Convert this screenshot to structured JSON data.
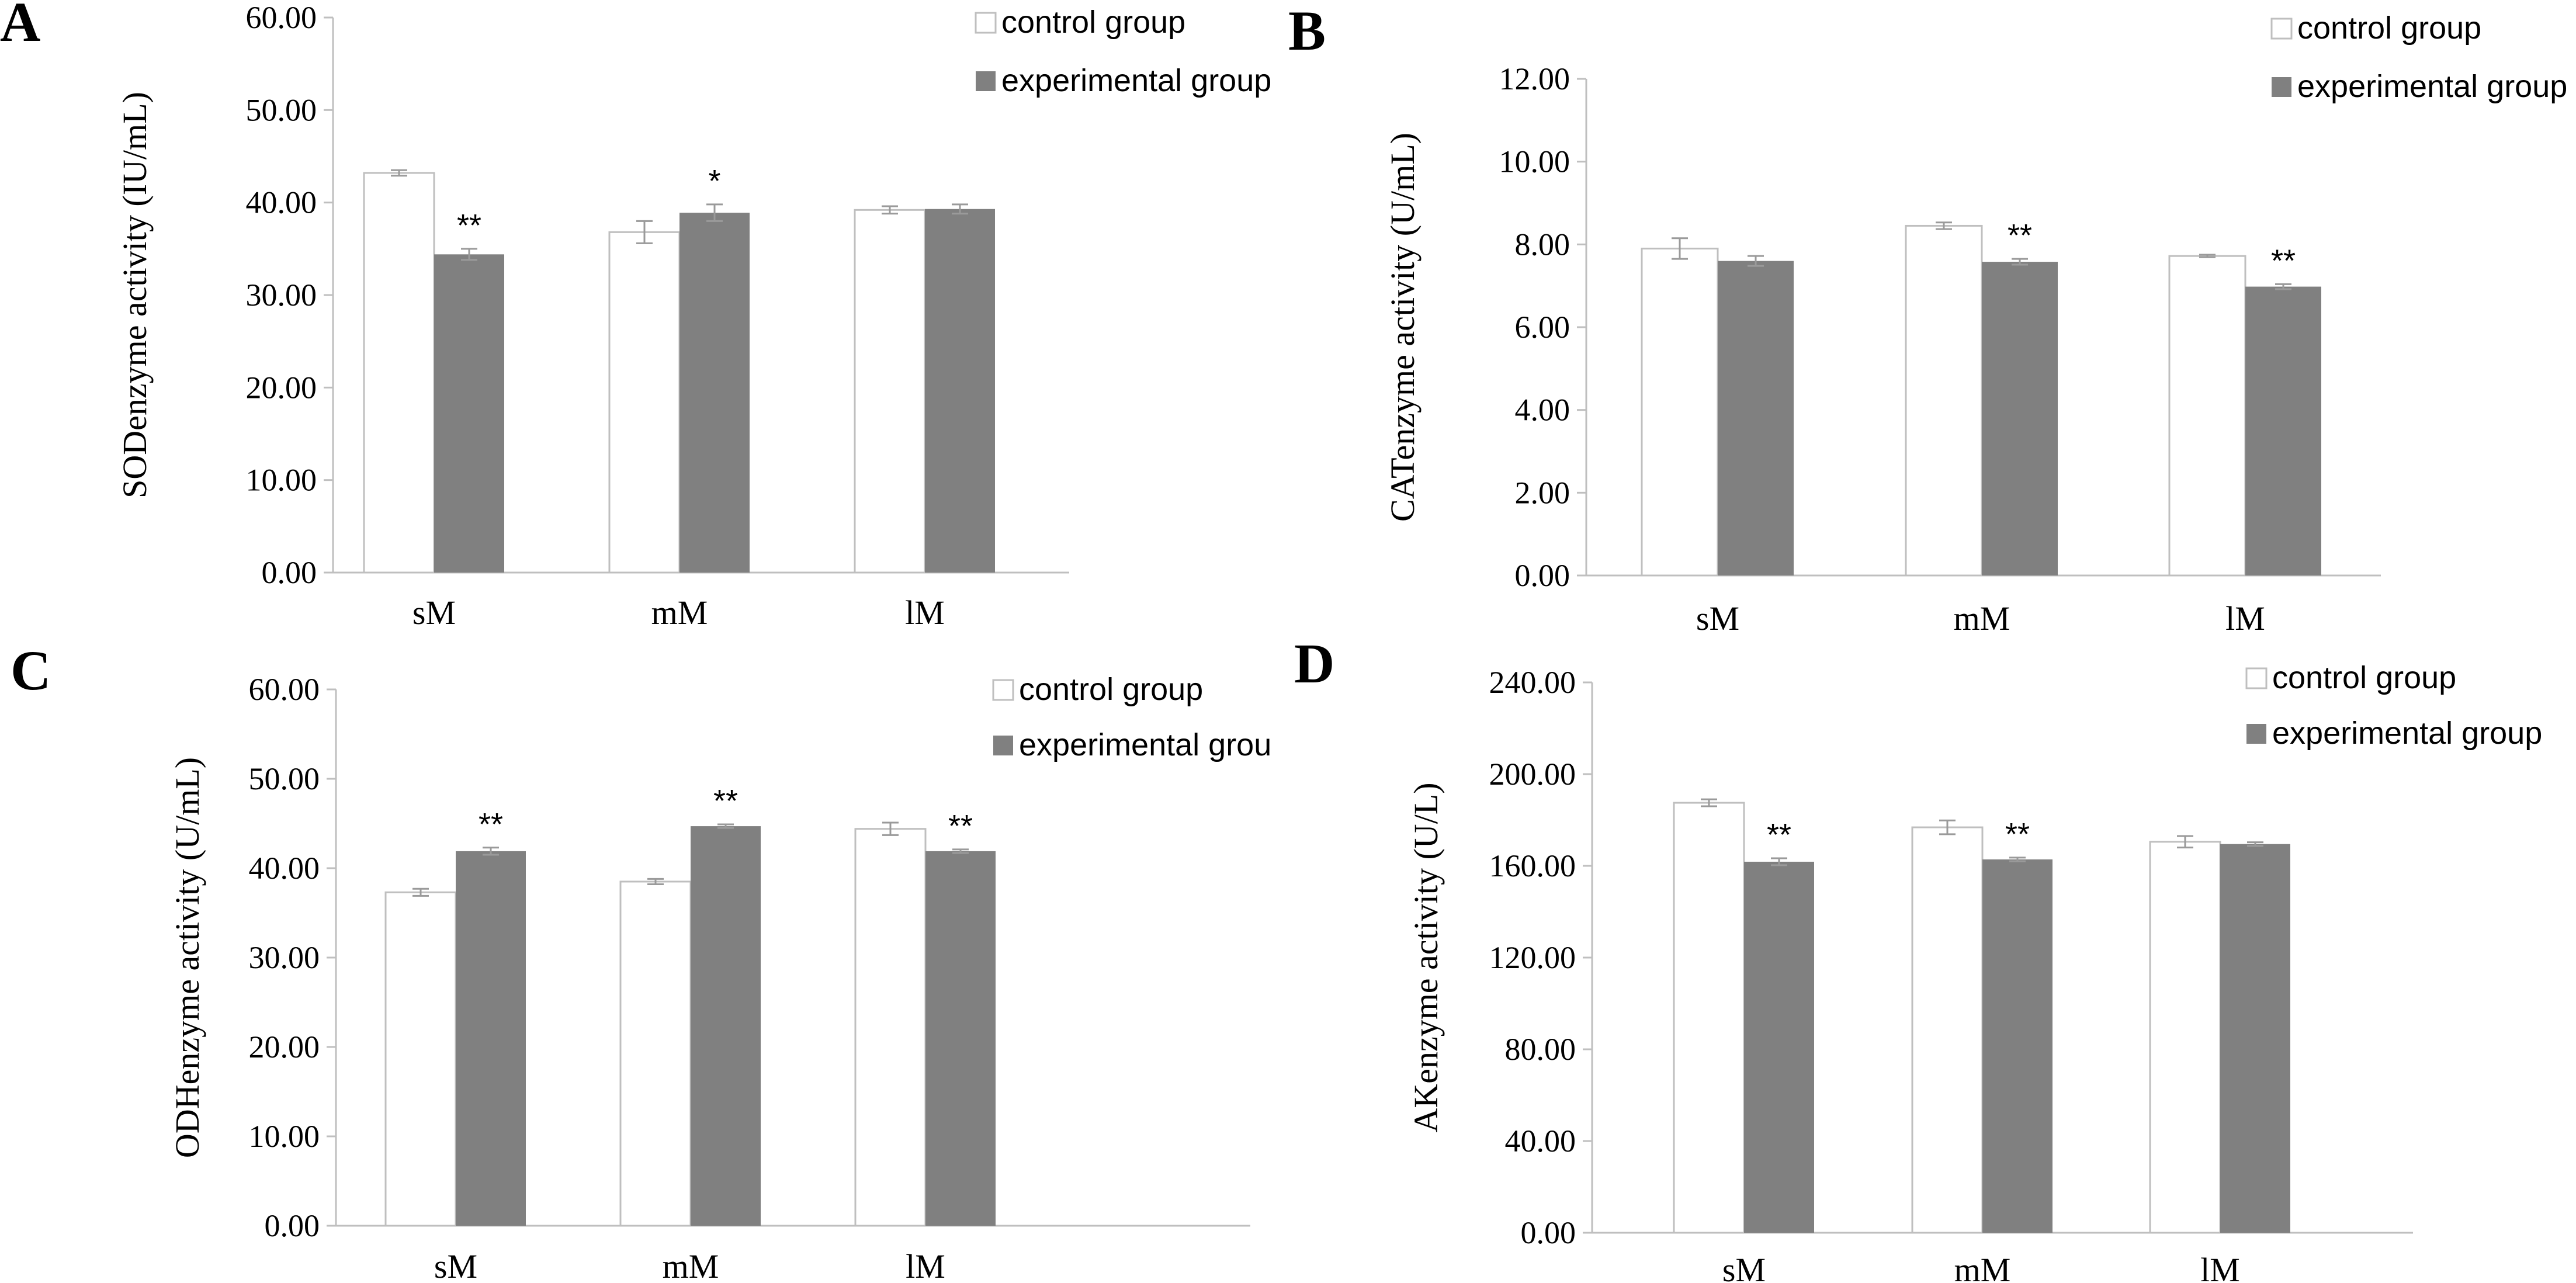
{
  "colors": {
    "control": "#ffffff",
    "experimental": "#808080",
    "axis": "#bfbfbf"
  },
  "chart_data": [
    {
      "panel": "A",
      "type": "bar",
      "ylabel": "SODenzyme activity (IU/mL)",
      "categories": [
        "sM",
        "mM",
        "lM"
      ],
      "ylim": [
        0,
        60
      ],
      "yticks": [
        "0.00",
        "10.00",
        "20.00",
        "30.00",
        "40.00",
        "50.00",
        "60.00"
      ],
      "legend": [
        "control group",
        "experimental group"
      ],
      "series": [
        {
          "name": "control group",
          "values": [
            43.2,
            36.8,
            39.2
          ],
          "errors": [
            0.3,
            1.2,
            0.4
          ]
        },
        {
          "name": "experimental group",
          "values": [
            34.4,
            38.9,
            39.3
          ],
          "errors": [
            0.6,
            0.9,
            0.5
          ]
        }
      ],
      "significance": [
        "**",
        "*",
        ""
      ]
    },
    {
      "panel": "B",
      "type": "bar",
      "ylabel": "CATenzyme activity (U/mL)",
      "categories": [
        "sM",
        "mM",
        "lM"
      ],
      "ylim": [
        0,
        12
      ],
      "yticks": [
        "0.00",
        "2.00",
        "4.00",
        "6.00",
        "8.00",
        "10.00",
        "12.00"
      ],
      "legend": [
        "control group",
        "experimental group"
      ],
      "series": [
        {
          "name": "control group",
          "values": [
            7.9,
            8.45,
            7.72
          ],
          "errors": [
            0.25,
            0.08,
            0.03
          ]
        },
        {
          "name": "experimental group",
          "values": [
            7.6,
            7.58,
            6.98
          ],
          "errors": [
            0.12,
            0.07,
            0.06
          ]
        }
      ],
      "significance": [
        "",
        "**",
        "**"
      ]
    },
    {
      "panel": "C",
      "type": "bar",
      "ylabel": "ODHenzyme activity (U/mL)",
      "categories": [
        "sM",
        "mM",
        "lM"
      ],
      "ylim": [
        0,
        60
      ],
      "yticks": [
        "0.00",
        "10.00",
        "20.00",
        "30.00",
        "40.00",
        "50.00",
        "60.00"
      ],
      "legend": [
        "control group",
        "experimental grou"
      ],
      "series": [
        {
          "name": "control group",
          "values": [
            37.3,
            38.5,
            44.4
          ],
          "errors": [
            0.4,
            0.3,
            0.7
          ]
        },
        {
          "name": "experimental group",
          "values": [
            41.9,
            44.7,
            41.9
          ],
          "errors": [
            0.4,
            0.2,
            0.2
          ]
        }
      ],
      "significance": [
        "**",
        "**",
        "**"
      ]
    },
    {
      "panel": "D",
      "type": "bar",
      "ylabel": "AKenzyme activity (U/L)",
      "categories": [
        "sM",
        "mM",
        "lM"
      ],
      "ylim": [
        0,
        240
      ],
      "yticks": [
        "0.00",
        "40.00",
        "80.00",
        "120.00",
        "160.00",
        "200.00",
        "240.00"
      ],
      "legend": [
        "control group",
        "experimental group"
      ],
      "series": [
        {
          "name": "control group",
          "values": [
            187.5,
            176.8,
            170.5
          ],
          "errors": [
            1.5,
            3.0,
            2.5
          ]
        },
        {
          "name": "experimental group",
          "values": [
            161.8,
            162.8,
            169.5
          ],
          "errors": [
            1.5,
            0.8,
            0.8
          ]
        }
      ],
      "significance": [
        "**",
        "**",
        ""
      ]
    }
  ]
}
